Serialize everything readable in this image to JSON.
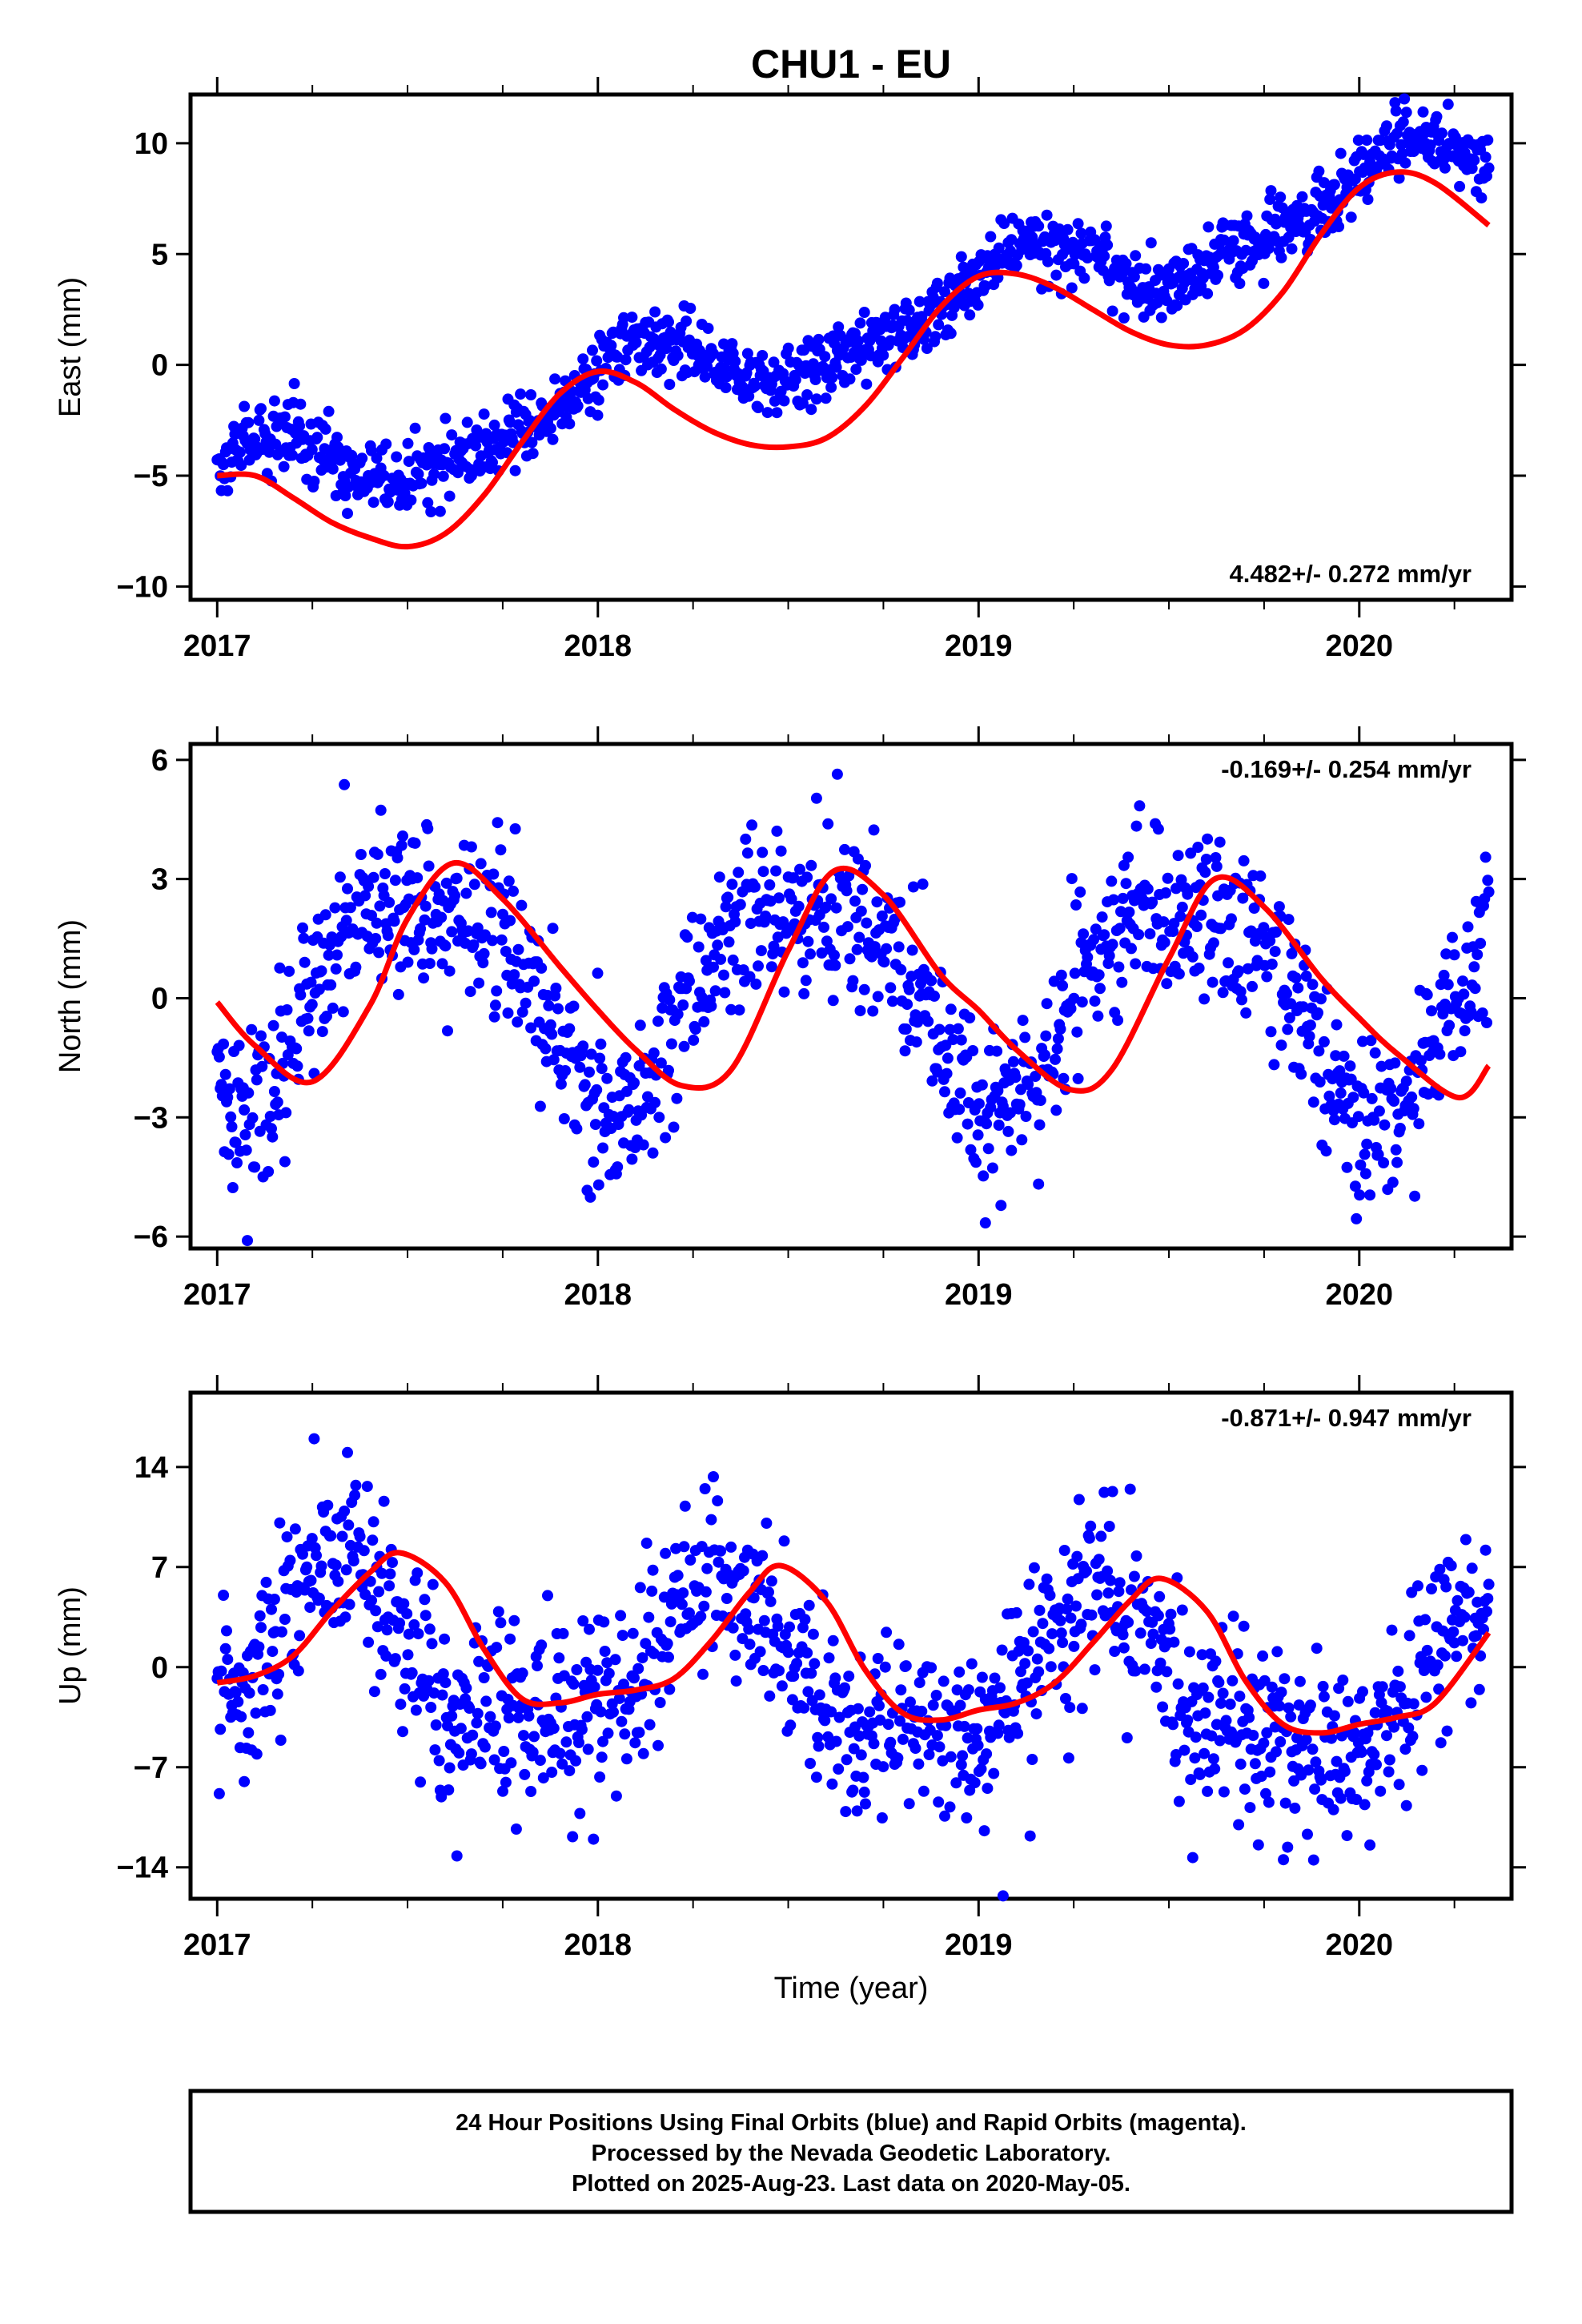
{
  "title": "CHU1 - EU",
  "xlabel": "Time (year)",
  "footer": {
    "line1": "24 Hour Positions Using Final Orbits (blue) and Rapid Orbits (magenta).",
    "line2": "Processed by the Nevada Geodetic Laboratory.",
    "line3": "Plotted on 2025-Aug-23. Last data on 2020-May-05."
  },
  "colors": {
    "points": "#0000ff",
    "fit": "#ff0000",
    "frame": "#000000"
  },
  "chart_data": [
    {
      "type": "scatter",
      "ylabel": "East (mm)",
      "rate_label": "4.482+/- 0.272 mm/yr",
      "rate_position": "bottom-right",
      "xlim": [
        2016.93,
        2020.4
      ],
      "ylim": [
        -10.6,
        12.2
      ],
      "xticks": [
        2017,
        2018,
        2019,
        2020
      ],
      "yticks": [
        -10,
        -5,
        0,
        5,
        10
      ],
      "trend": {
        "intercept_at_2017": -5.9,
        "rate": 4.482
      },
      "seasonal": {
        "annual_sin": 0.9,
        "annual_cos": 1.3,
        "semiannual_sin": 0.55,
        "semiannual_cos": -0.2
      },
      "scatter_sd": 0.75,
      "series": [
        {
          "name": "Fit",
          "x": [
            2017.0,
            2017.1,
            2017.2,
            2017.3,
            2017.4,
            2017.5,
            2017.6,
            2017.7,
            2017.8,
            2017.9,
            2018.0,
            2018.1,
            2018.2,
            2018.3,
            2018.4,
            2018.5,
            2018.6,
            2018.7,
            2018.8,
            2018.9,
            2019.0,
            2019.1,
            2019.2,
            2019.3,
            2019.4,
            2019.5,
            2019.6,
            2019.7,
            2019.8,
            2019.9,
            2020.0,
            2020.1,
            2020.2,
            2020.34
          ],
          "y": [
            -5.0,
            -5.0,
            -6.0,
            -7.1,
            -7.8,
            -8.2,
            -7.6,
            -5.9,
            -3.5,
            -1.3,
            -0.3,
            -0.8,
            -2.0,
            -3.0,
            -3.6,
            -3.7,
            -3.3,
            -1.9,
            0.3,
            2.6,
            4.0,
            4.1,
            3.5,
            2.5,
            1.5,
            0.9,
            0.9,
            1.6,
            3.3,
            5.9,
            8.0,
            8.7,
            8.2,
            6.3
          ]
        }
      ]
    },
    {
      "type": "scatter",
      "ylabel": "North (mm)",
      "rate_label": "-0.169+/- 0.254 mm/yr",
      "rate_position": "top-right",
      "xlim": [
        2016.93,
        2020.4
      ],
      "ylim": [
        -6.3,
        6.4
      ],
      "xticks": [
        2017,
        2018,
        2019,
        2020
      ],
      "yticks": [
        -6,
        -3,
        0,
        3,
        6
      ],
      "trend": {
        "intercept_at_2017": 0.55,
        "rate": -0.169
      },
      "seasonal": {
        "annual_sin": -0.7,
        "annual_cos": -2.4,
        "semiannual_sin": -0.45,
        "semiannual_cos": -0.5
      },
      "scatter_sd": 1.0,
      "series": [
        {
          "name": "Fit",
          "x": [
            2017.0,
            2017.1,
            2017.25,
            2017.4,
            2017.5,
            2017.62,
            2017.75,
            2017.9,
            2018.0,
            2018.1,
            2018.22,
            2018.35,
            2018.5,
            2018.62,
            2018.75,
            2018.9,
            2019.0,
            2019.1,
            2019.24,
            2019.35,
            2019.5,
            2019.62,
            2019.75,
            2019.9,
            2020.0,
            2020.1,
            2020.26,
            2020.34
          ],
          "y": [
            -0.1,
            -1.2,
            -2.1,
            -0.2,
            2.0,
            3.4,
            2.5,
            0.8,
            -0.3,
            -1.3,
            -2.2,
            -1.8,
            1.2,
            3.2,
            2.6,
            0.6,
            -0.3,
            -1.3,
            -2.3,
            -1.8,
            1.0,
            3.0,
            2.3,
            0.5,
            -0.5,
            -1.4,
            -2.5,
            -1.7
          ]
        }
      ]
    },
    {
      "type": "scatter",
      "ylabel": "Up (mm)",
      "rate_label": "-0.871+/- 0.947 mm/yr",
      "rate_position": "top-right",
      "xlim": [
        2016.93,
        2020.4
      ],
      "ylim": [
        -16.2,
        19.2
      ],
      "xticks": [
        2017,
        2018,
        2019,
        2020
      ],
      "yticks": [
        -14,
        -7,
        0,
        7,
        14
      ],
      "trend": {
        "intercept_at_2017": 0.9,
        "rate": -0.871
      },
      "seasonal": {
        "annual_sin": 4.2,
        "annual_cos": -2.1,
        "semiannual_sin": -1.4,
        "semiannual_cos": -1.4
      },
      "scatter_sd": 3.2,
      "series": [
        {
          "name": "Fit",
          "x": [
            2017.0,
            2017.1,
            2017.2,
            2017.3,
            2017.4,
            2017.48,
            2017.6,
            2017.7,
            2017.8,
            2017.9,
            2018.0,
            2018.1,
            2018.2,
            2018.3,
            2018.4,
            2018.48,
            2018.6,
            2018.7,
            2018.8,
            2018.9,
            2019.0,
            2019.1,
            2019.2,
            2019.3,
            2019.4,
            2019.48,
            2019.6,
            2019.7,
            2019.8,
            2019.9,
            2020.0,
            2020.1,
            2020.2,
            2020.34
          ],
          "y": [
            -1.1,
            -0.6,
            0.8,
            3.9,
            6.6,
            8.0,
            5.9,
            1.3,
            -2.2,
            -2.5,
            -1.9,
            -1.6,
            -0.8,
            1.9,
            5.3,
            7.1,
            4.6,
            -0.1,
            -3.2,
            -3.7,
            -3.0,
            -2.5,
            -1.1,
            1.7,
            4.7,
            6.2,
            3.9,
            -0.9,
            -4.0,
            -4.6,
            -4.0,
            -3.5,
            -2.5,
            2.4
          ]
        }
      ]
    }
  ]
}
